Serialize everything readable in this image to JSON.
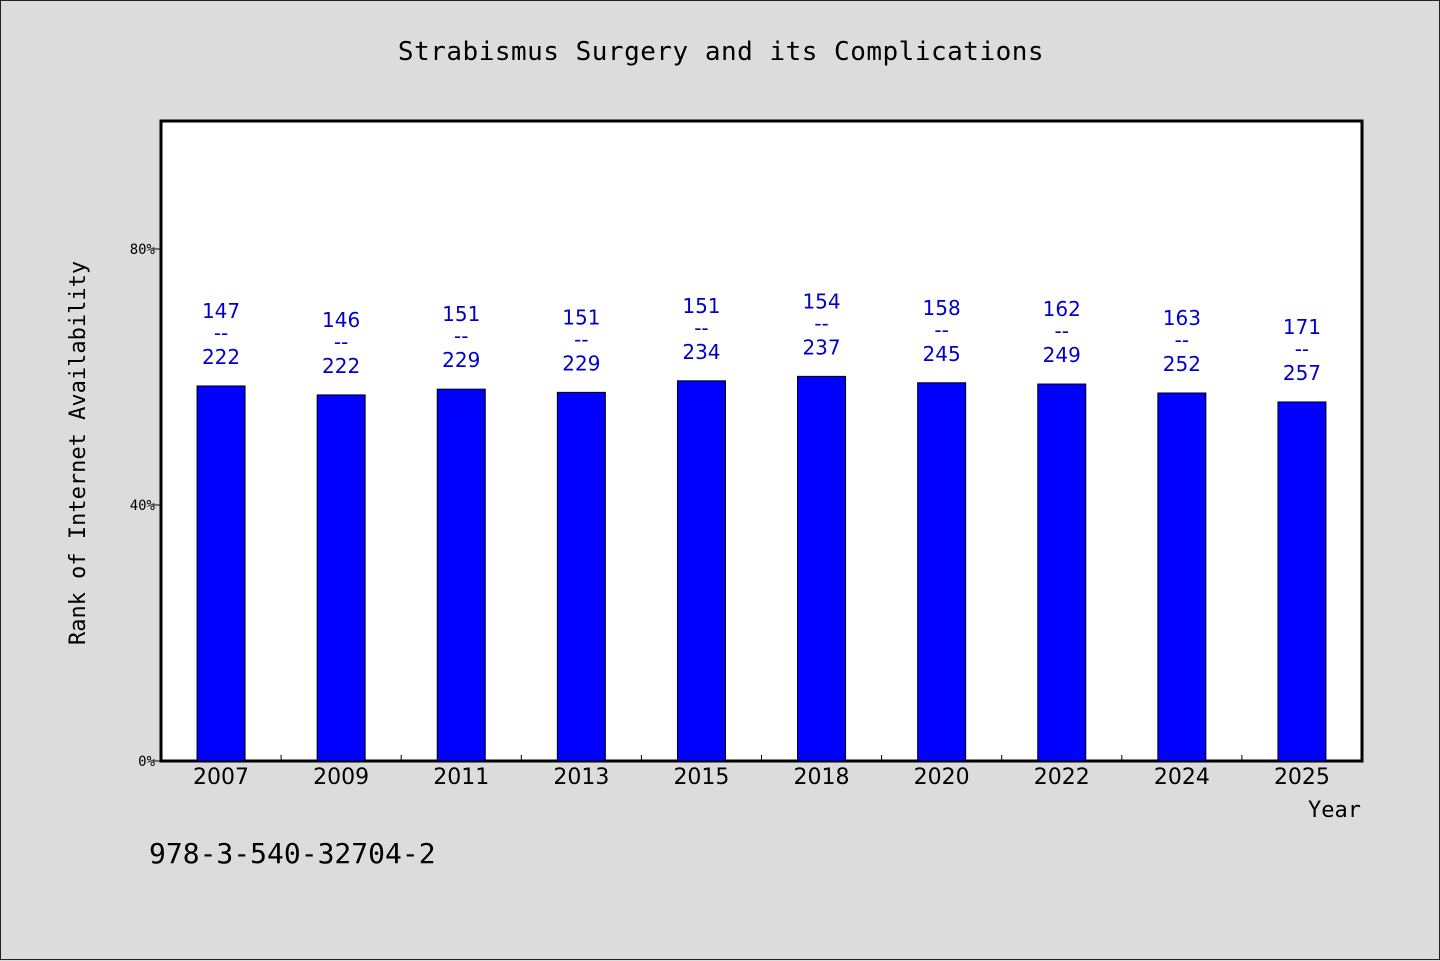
{
  "title": "Strabismus Surgery and its Complications",
  "footer_id": "978-3-540-32704-2",
  "colors": {
    "bar": "#0000ff",
    "label": "#0000cc",
    "background": "#dcdcdc",
    "plot": "#ffffff"
  },
  "chart_data": {
    "type": "bar",
    "title": "Strabismus Surgery and its Complications",
    "xlabel": "Year",
    "ylabel": "Rank of Internet Availability",
    "ylim": [
      0,
      100
    ],
    "yticks": [
      0,
      40,
      80
    ],
    "ytick_labels": [
      "0%",
      "40%",
      "80%"
    ],
    "grid": false,
    "categories": [
      "2007",
      "2009",
      "2011",
      "2013",
      "2015",
      "2018",
      "2020",
      "2022",
      "2024",
      "2025"
    ],
    "values": [
      58.6,
      57.2,
      58.1,
      57.6,
      59.4,
      60.1,
      59.1,
      58.9,
      57.5,
      56.1
    ],
    "data_labels": [
      {
        "top": "147",
        "sep": "--",
        "bottom": "222"
      },
      {
        "top": "146",
        "sep": "--",
        "bottom": "222"
      },
      {
        "top": "151",
        "sep": "--",
        "bottom": "229"
      },
      {
        "top": "151",
        "sep": "--",
        "bottom": "229"
      },
      {
        "top": "151",
        "sep": "--",
        "bottom": "234"
      },
      {
        "top": "154",
        "sep": "--",
        "bottom": "237"
      },
      {
        "top": "158",
        "sep": "--",
        "bottom": "245"
      },
      {
        "top": "162",
        "sep": "--",
        "bottom": "249"
      },
      {
        "top": "163",
        "sep": "--",
        "bottom": "252"
      },
      {
        "top": "171",
        "sep": "--",
        "bottom": "257"
      }
    ]
  }
}
